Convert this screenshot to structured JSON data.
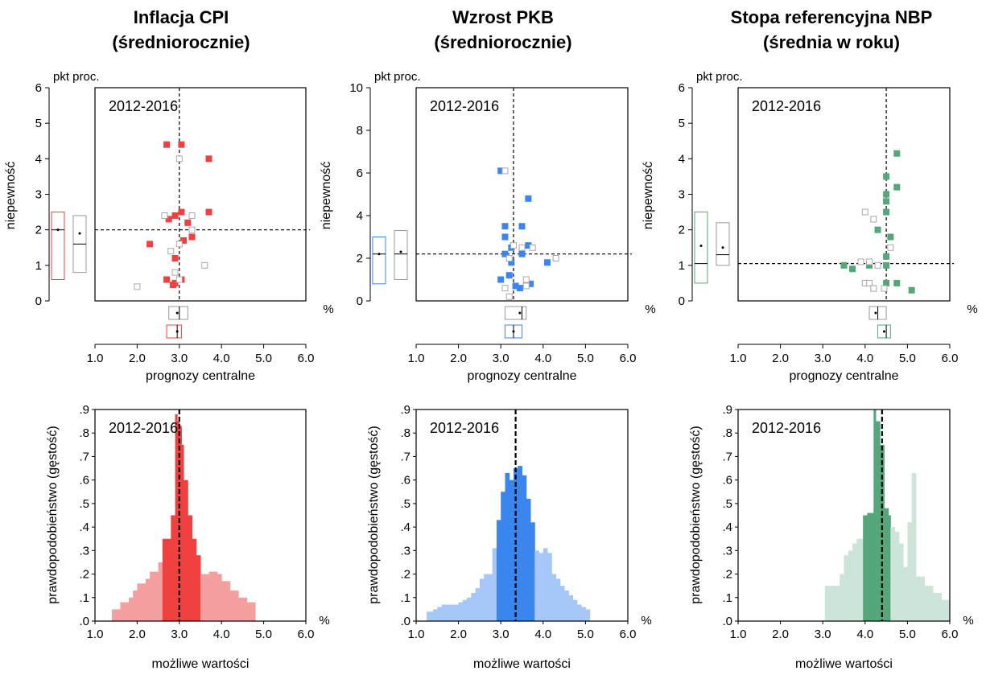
{
  "period_label": "2012-2016",
  "unit_label": "pkt proc.",
  "pct_label": "%",
  "y_label_scatter": "niepewność",
  "x_label_scatter": "prognozy centralne",
  "y_label_hist": "prawdopodobieństwo (gęstość)",
  "x_label_hist": "możliwe wartości",
  "x_ticks": [
    "1.0",
    "2.0",
    "3.0",
    "4.0",
    "5.0",
    "6.0"
  ],
  "hist_y_ticks": [
    ".0",
    ".1",
    ".2",
    ".3",
    ".4",
    ".5",
    ".6",
    ".7",
    ".8",
    ".9"
  ],
  "panels": [
    {
      "title_line1": "Inflacja CPI",
      "title_line2": "(średniorocznie)",
      "color": "#f04040",
      "light_color": "#f5a0a0",
      "scatter_y_ticks": [
        "0",
        "1",
        "2",
        "3",
        "4",
        "5",
        "6"
      ],
      "scatter_ymax": 6
    },
    {
      "title_line1": "Wzrost PKB",
      "title_line2": "(średniorocznie)",
      "color": "#3a85ee",
      "light_color": "#a6c7f7",
      "scatter_y_ticks": [
        "0",
        "2",
        "4",
        "6",
        "8",
        "10"
      ],
      "scatter_ymax": 10
    },
    {
      "title_line1": "Stopa referencyjna NBP",
      "title_line2": "(średnia w roku)",
      "color": "#55a77a",
      "light_color": "#cde5d8",
      "scatter_y_ticks": [
        "0",
        "1",
        "2",
        "3",
        "4",
        "5",
        "6"
      ],
      "scatter_ymax": 6
    }
  ],
  "chart_data": [
    {
      "type": "scatter",
      "title": "Inflacja CPI (średniorocznie)",
      "xlabel": "prognozy centralne",
      "ylabel": "niepewność",
      "xlim": [
        1.0,
        6.0
      ],
      "ylim": [
        0,
        6
      ],
      "ref_x": 3.0,
      "ref_y": 2.0,
      "series": [
        {
          "name": "",
          "style": "filled",
          "points": [
            [
              2.7,
              4.4
            ],
            [
              3.05,
              4.4
            ],
            [
              3.7,
              4.0
            ],
            [
              2.9,
              2.4
            ],
            [
              3.05,
              2.5
            ],
            [
              3.7,
              2.5
            ],
            [
              2.75,
              2.3
            ],
            [
              3.2,
              2.2
            ],
            [
              2.3,
              1.6
            ],
            [
              3.3,
              1.8
            ],
            [
              3.1,
              1.7
            ],
            [
              2.9,
              1.2
            ],
            [
              2.7,
              0.6
            ],
            [
              2.9,
              0.5
            ],
            [
              3.05,
              0.6
            ],
            [
              2.85,
              0.45
            ]
          ]
        },
        {
          "name": "",
          "style": "open",
          "points": [
            [
              3.0,
              4.0
            ],
            [
              2.65,
              2.4
            ],
            [
              3.3,
              2.4
            ],
            [
              3.3,
              2.0
            ],
            [
              3.0,
              1.6
            ],
            [
              2.8,
              1.4
            ],
            [
              3.6,
              1.0
            ],
            [
              2.9,
              0.8
            ],
            [
              2.0,
              0.4
            ],
            [
              3.0,
              0.6
            ]
          ]
        }
      ],
      "marginal_y": [
        {
          "style": "colored",
          "q1": 0.6,
          "median": 2.0,
          "q3": 2.5,
          "mean": 2.0
        },
        {
          "style": "gray",
          "q1": 0.8,
          "median": 1.6,
          "q3": 2.4,
          "mean": 1.9
        }
      ],
      "marginal_x": [
        {
          "style": "gray",
          "q1": 2.75,
          "median": 3.0,
          "q3": 3.2,
          "mean": 2.95
        },
        {
          "style": "colored",
          "q1": 2.7,
          "median": 2.95,
          "q3": 3.05,
          "mean": 2.95
        }
      ]
    },
    {
      "type": "bar",
      "title": "Inflacja CPI (średniorocznie)",
      "xlabel": "możliwe wartości",
      "ylabel": "prawdopodobieństwo (gęstość)",
      "xlim": [
        1.0,
        6.0
      ],
      "ylim": [
        0,
        0.9
      ],
      "ref_x": 3.0,
      "bins": [
        {
          "x0": 1.4,
          "x1": 1.6,
          "y": 0.05,
          "core": false
        },
        {
          "x0": 1.6,
          "x1": 1.8,
          "y": 0.08,
          "core": false
        },
        {
          "x0": 1.8,
          "x1": 1.9,
          "y": 0.1,
          "core": false
        },
        {
          "x0": 1.9,
          "x1": 2.0,
          "y": 0.13,
          "core": false
        },
        {
          "x0": 2.0,
          "x1": 2.2,
          "y": 0.16,
          "core": false
        },
        {
          "x0": 2.2,
          "x1": 2.3,
          "y": 0.18,
          "core": false
        },
        {
          "x0": 2.3,
          "x1": 2.5,
          "y": 0.21,
          "core": false
        },
        {
          "x0": 2.5,
          "x1": 2.6,
          "y": 0.25,
          "core": false
        },
        {
          "x0": 2.6,
          "x1": 2.8,
          "y": 0.35,
          "core": true
        },
        {
          "x0": 2.8,
          "x1": 2.9,
          "y": 0.45,
          "core": true
        },
        {
          "x0": 2.9,
          "x1": 2.95,
          "y": 0.88,
          "core": true
        },
        {
          "x0": 2.95,
          "x1": 3.0,
          "y": 0.85,
          "core": true
        },
        {
          "x0": 3.0,
          "x1": 3.05,
          "y": 0.83,
          "core": true
        },
        {
          "x0": 3.05,
          "x1": 3.1,
          "y": 0.75,
          "core": true
        },
        {
          "x0": 3.1,
          "x1": 3.2,
          "y": 0.6,
          "core": true
        },
        {
          "x0": 3.2,
          "x1": 3.3,
          "y": 0.45,
          "core": true
        },
        {
          "x0": 3.3,
          "x1": 3.4,
          "y": 0.35,
          "core": true
        },
        {
          "x0": 3.4,
          "x1": 3.5,
          "y": 0.28,
          "core": true
        },
        {
          "x0": 3.5,
          "x1": 3.7,
          "y": 0.2,
          "core": false
        },
        {
          "x0": 3.7,
          "x1": 3.9,
          "y": 0.21,
          "core": false
        },
        {
          "x0": 3.9,
          "x1": 4.0,
          "y": 0.2,
          "core": false
        },
        {
          "x0": 4.0,
          "x1": 4.2,
          "y": 0.17,
          "core": false
        },
        {
          "x0": 4.2,
          "x1": 4.4,
          "y": 0.13,
          "core": false
        },
        {
          "x0": 4.4,
          "x1": 4.6,
          "y": 0.1,
          "core": false
        },
        {
          "x0": 4.6,
          "x1": 4.8,
          "y": 0.08,
          "core": false
        }
      ]
    },
    {
      "type": "scatter",
      "title": "Wzrost PKB (średniorocznie)",
      "xlabel": "prognozy centralne",
      "ylabel": "niepewność",
      "xlim": [
        1.0,
        6.0
      ],
      "ylim": [
        0,
        10
      ],
      "ref_x": 3.3,
      "ref_y": 2.2,
      "series": [
        {
          "name": "",
          "style": "filled",
          "points": [
            [
              3.0,
              6.1
            ],
            [
              3.65,
              4.8
            ],
            [
              3.1,
              3.5
            ],
            [
              3.5,
              3.5
            ],
            [
              3.1,
              3.0
            ],
            [
              3.65,
              2.6
            ],
            [
              3.25,
              2.5
            ],
            [
              3.5,
              2.2
            ],
            [
              3.1,
              2.2
            ],
            [
              4.1,
              1.8
            ],
            [
              3.25,
              1.8
            ],
            [
              3.2,
              1.2
            ],
            [
              3.0,
              1.0
            ],
            [
              3.7,
              0.8
            ],
            [
              3.35,
              0.7
            ],
            [
              3.45,
              0.6
            ]
          ]
        },
        {
          "name": "",
          "style": "open",
          "points": [
            [
              3.1,
              6.1
            ],
            [
              3.3,
              2.6
            ],
            [
              3.5,
              2.5
            ],
            [
              3.75,
              2.5
            ],
            [
              4.3,
              2.0
            ],
            [
              3.2,
              2.0
            ],
            [
              3.6,
              1.0
            ],
            [
              3.6,
              0.7
            ],
            [
              3.1,
              0.6
            ],
            [
              3.2,
              0.2
            ]
          ]
        }
      ],
      "marginal_y": [
        {
          "style": "colored",
          "q1": 0.8,
          "median": 2.2,
          "q3": 3.0,
          "mean": 2.2
        },
        {
          "style": "gray",
          "q1": 1.0,
          "median": 2.2,
          "q3": 3.3,
          "mean": 2.3
        }
      ],
      "marginal_x": [
        {
          "style": "gray",
          "q1": 3.1,
          "median": 3.5,
          "q3": 3.6,
          "mean": 3.45
        },
        {
          "style": "colored",
          "q1": 3.1,
          "median": 3.3,
          "q3": 3.5,
          "mean": 3.3
        }
      ]
    },
    {
      "type": "bar",
      "title": "Wzrost PKB (średniorocznie)",
      "xlabel": "możliwe wartości",
      "ylabel": "prawdopodobieństwo (gęstość)",
      "xlim": [
        1.0,
        6.0
      ],
      "ylim": [
        0,
        0.9
      ],
      "ref_x": 3.35,
      "bins": [
        {
          "x0": 1.25,
          "x1": 1.4,
          "y": 0.04,
          "core": false
        },
        {
          "x0": 1.4,
          "x1": 1.5,
          "y": 0.05,
          "core": false
        },
        {
          "x0": 1.5,
          "x1": 1.6,
          "y": 0.06,
          "core": false
        },
        {
          "x0": 1.6,
          "x1": 2.0,
          "y": 0.07,
          "core": false
        },
        {
          "x0": 2.0,
          "x1": 2.1,
          "y": 0.08,
          "core": false
        },
        {
          "x0": 2.1,
          "x1": 2.2,
          "y": 0.09,
          "core": false
        },
        {
          "x0": 2.2,
          "x1": 2.3,
          "y": 0.1,
          "core": false
        },
        {
          "x0": 2.3,
          "x1": 2.4,
          "y": 0.12,
          "core": false
        },
        {
          "x0": 2.4,
          "x1": 2.5,
          "y": 0.14,
          "core": false
        },
        {
          "x0": 2.5,
          "x1": 2.6,
          "y": 0.18,
          "core": false
        },
        {
          "x0": 2.6,
          "x1": 2.8,
          "y": 0.2,
          "core": false
        },
        {
          "x0": 2.8,
          "x1": 2.9,
          "y": 0.31,
          "core": false
        },
        {
          "x0": 2.9,
          "x1": 3.0,
          "y": 0.43,
          "core": true
        },
        {
          "x0": 3.0,
          "x1": 3.1,
          "y": 0.55,
          "core": true
        },
        {
          "x0": 3.1,
          "x1": 3.2,
          "y": 0.63,
          "core": true
        },
        {
          "x0": 3.2,
          "x1": 3.3,
          "y": 0.6,
          "core": true
        },
        {
          "x0": 3.3,
          "x1": 3.4,
          "y": 0.65,
          "core": true
        },
        {
          "x0": 3.4,
          "x1": 3.5,
          "y": 0.66,
          "core": true
        },
        {
          "x0": 3.5,
          "x1": 3.6,
          "y": 0.62,
          "core": true
        },
        {
          "x0": 3.6,
          "x1": 3.7,
          "y": 0.52,
          "core": true
        },
        {
          "x0": 3.7,
          "x1": 3.8,
          "y": 0.42,
          "core": true
        },
        {
          "x0": 3.8,
          "x1": 3.9,
          "y": 0.3,
          "core": false
        },
        {
          "x0": 3.9,
          "x1": 4.0,
          "y": 0.29,
          "core": false
        },
        {
          "x0": 4.0,
          "x1": 4.1,
          "y": 0.31,
          "core": false
        },
        {
          "x0": 4.1,
          "x1": 4.2,
          "y": 0.29,
          "core": false
        },
        {
          "x0": 4.2,
          "x1": 4.3,
          "y": 0.2,
          "core": false
        },
        {
          "x0": 4.3,
          "x1": 4.4,
          "y": 0.18,
          "core": false
        },
        {
          "x0": 4.4,
          "x1": 4.5,
          "y": 0.15,
          "core": false
        },
        {
          "x0": 4.5,
          "x1": 4.6,
          "y": 0.13,
          "core": false
        },
        {
          "x0": 4.6,
          "x1": 4.7,
          "y": 0.11,
          "core": false
        },
        {
          "x0": 4.7,
          "x1": 4.8,
          "y": 0.09,
          "core": false
        },
        {
          "x0": 4.8,
          "x1": 4.9,
          "y": 0.07,
          "core": false
        },
        {
          "x0": 4.9,
          "x1": 5.0,
          "y": 0.06,
          "core": false
        },
        {
          "x0": 5.0,
          "x1": 5.1,
          "y": 0.05,
          "core": false
        }
      ]
    },
    {
      "type": "scatter",
      "title": "Stopa referencyjna NBP (średnia w roku)",
      "xlabel": "prognozy centralne",
      "ylabel": "niepewność",
      "xlim": [
        1.0,
        6.0
      ],
      "ylim": [
        0,
        6
      ],
      "ref_x": 4.5,
      "ref_y": 1.05,
      "series": [
        {
          "name": "",
          "style": "filled",
          "points": [
            [
              4.75,
              4.15
            ],
            [
              4.5,
              3.5
            ],
            [
              4.75,
              3.2
            ],
            [
              4.5,
              3.0
            ],
            [
              4.5,
              2.8
            ],
            [
              4.5,
              2.5
            ],
            [
              4.3,
              2.0
            ],
            [
              4.6,
              1.8
            ],
            [
              4.5,
              1.25
            ],
            [
              3.5,
              1.0
            ],
            [
              3.7,
              0.9
            ],
            [
              4.1,
              1.0
            ],
            [
              4.5,
              1.0
            ],
            [
              4.5,
              0.5
            ],
            [
              4.75,
              0.5
            ],
            [
              5.1,
              0.3
            ]
          ]
        },
        {
          "name": "",
          "style": "open",
          "points": [
            [
              4.0,
              2.5
            ],
            [
              4.2,
              2.3
            ],
            [
              4.6,
              1.5
            ],
            [
              3.9,
              1.1
            ],
            [
              4.1,
              1.1
            ],
            [
              4.3,
              1.0
            ],
            [
              4.0,
              0.5
            ],
            [
              4.1,
              0.5
            ],
            [
              4.2,
              0.35
            ],
            [
              4.45,
              0.35
            ]
          ]
        }
      ],
      "marginal_y": [
        {
          "style": "colored",
          "q1": 0.5,
          "median": 1.05,
          "q3": 2.5,
          "mean": 1.55
        },
        {
          "style": "gray",
          "q1": 1.0,
          "median": 1.3,
          "q3": 2.2,
          "mean": 1.5
        }
      ],
      "marginal_x": [
        {
          "style": "gray",
          "q1": 4.1,
          "median": 4.3,
          "q3": 4.5,
          "mean": 4.25
        },
        {
          "style": "colored",
          "q1": 4.3,
          "median": 4.5,
          "q3": 4.6,
          "mean": 4.45
        }
      ]
    },
    {
      "type": "bar",
      "title": "Stopa referencyjna NBP (średnia w roku)",
      "xlabel": "możliwe wartości",
      "ylabel": "prawdopodobieństwo (gęstość)",
      "xlim": [
        1.0,
        6.0
      ],
      "ylim": [
        0,
        0.9
      ],
      "ref_x": 4.4,
      "bins": [
        {
          "x0": 3.05,
          "x1": 3.4,
          "y": 0.15,
          "core": false
        },
        {
          "x0": 3.4,
          "x1": 3.5,
          "y": 0.2,
          "core": false
        },
        {
          "x0": 3.5,
          "x1": 3.6,
          "y": 0.28,
          "core": false
        },
        {
          "x0": 3.6,
          "x1": 3.7,
          "y": 0.3,
          "core": false
        },
        {
          "x0": 3.7,
          "x1": 3.8,
          "y": 0.33,
          "core": false
        },
        {
          "x0": 3.8,
          "x1": 3.95,
          "y": 0.35,
          "core": false
        },
        {
          "x0": 3.95,
          "x1": 4.05,
          "y": 0.45,
          "core": true
        },
        {
          "x0": 4.05,
          "x1": 4.2,
          "y": 0.46,
          "core": true
        },
        {
          "x0": 4.2,
          "x1": 4.25,
          "y": 0.9,
          "core": true
        },
        {
          "x0": 4.25,
          "x1": 4.35,
          "y": 0.85,
          "core": true
        },
        {
          "x0": 4.35,
          "x1": 4.45,
          "y": 0.75,
          "core": true
        },
        {
          "x0": 4.45,
          "x1": 4.55,
          "y": 0.48,
          "core": true
        },
        {
          "x0": 4.55,
          "x1": 4.6,
          "y": 0.45,
          "core": true
        },
        {
          "x0": 4.6,
          "x1": 4.7,
          "y": 0.4,
          "core": false
        },
        {
          "x0": 4.7,
          "x1": 4.8,
          "y": 0.38,
          "core": false
        },
        {
          "x0": 4.8,
          "x1": 4.9,
          "y": 0.33,
          "core": false
        },
        {
          "x0": 4.9,
          "x1": 5.0,
          "y": 0.23,
          "core": false
        },
        {
          "x0": 5.0,
          "x1": 5.1,
          "y": 0.42,
          "core": false
        },
        {
          "x0": 5.1,
          "x1": 5.2,
          "y": 0.63,
          "core": false
        },
        {
          "x0": 5.2,
          "x1": 5.4,
          "y": 0.19,
          "core": false
        },
        {
          "x0": 5.4,
          "x1": 5.6,
          "y": 0.15,
          "core": false
        },
        {
          "x0": 5.6,
          "x1": 5.8,
          "y": 0.12,
          "core": false
        },
        {
          "x0": 5.8,
          "x1": 6.0,
          "y": 0.09,
          "core": false
        }
      ]
    }
  ]
}
